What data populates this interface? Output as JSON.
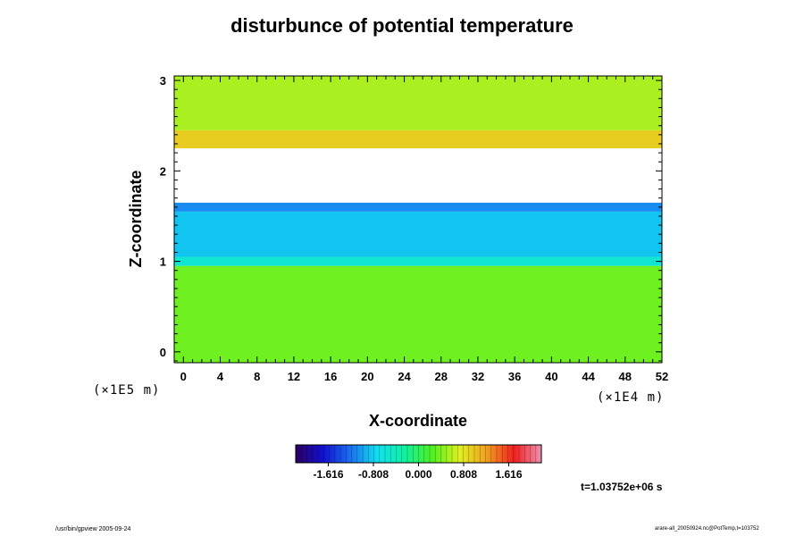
{
  "chart_data": {
    "type": "heatmap",
    "title": "disturbunce of potential temperature",
    "xlabel": "X-coordinate",
    "ylabel": "Z-coordinate",
    "x_unit": "(×1E4 m)",
    "y_unit": "(×1E5 m)",
    "xlim": [
      -1,
      52
    ],
    "ylim": [
      -0.12,
      3.05
    ],
    "x_ticks": [
      "0",
      "4",
      "8",
      "12",
      "16",
      "20",
      "24",
      "28",
      "32",
      "36",
      "40",
      "44",
      "48",
      "52"
    ],
    "x_tick_values": [
      0,
      4,
      8,
      12,
      16,
      20,
      24,
      28,
      32,
      36,
      40,
      44,
      48,
      52
    ],
    "y_ticks": [
      "0",
      "1",
      "2",
      "3"
    ],
    "y_tick_values": [
      0,
      1,
      2,
      3
    ],
    "colorbar": {
      "range": [
        -2.2,
        2.2
      ],
      "tick_labels": [
        "-1.616",
        "-0.808",
        "0.000",
        "0.808",
        "1.616"
      ],
      "tick_values": [
        -1.616,
        -0.808,
        0.0,
        0.808,
        1.616
      ],
      "color_stops": [
        "#2a0060",
        "#1010d0",
        "#1a70f0",
        "#10e0f0",
        "#10f0a0",
        "#50f020",
        "#e0f020",
        "#f0a020",
        "#f02020",
        "#f090b0"
      ]
    },
    "field_bands": [
      {
        "z_from": -0.12,
        "z_to": 0.95,
        "value": 0.35
      },
      {
        "z_from": 0.95,
        "z_to": 1.05,
        "value": -0.55
      },
      {
        "z_from": 1.05,
        "z_to": 1.55,
        "value": -0.85
      },
      {
        "z_from": 1.55,
        "z_to": 1.65,
        "value": -1.1
      },
      {
        "z_from": 1.65,
        "z_to": 2.25,
        "value": null
      },
      {
        "z_from": 2.25,
        "z_to": 2.45,
        "value": 0.95
      },
      {
        "z_from": 2.45,
        "z_to": 3.05,
        "value": 0.55
      }
    ],
    "annotation_time": "t=1.03752e+06 s"
  },
  "footer": {
    "left": "/usr/bin/gpview 2005-09-24",
    "right": "arare-all_20050924.nc@PotTemp,t=103752"
  }
}
